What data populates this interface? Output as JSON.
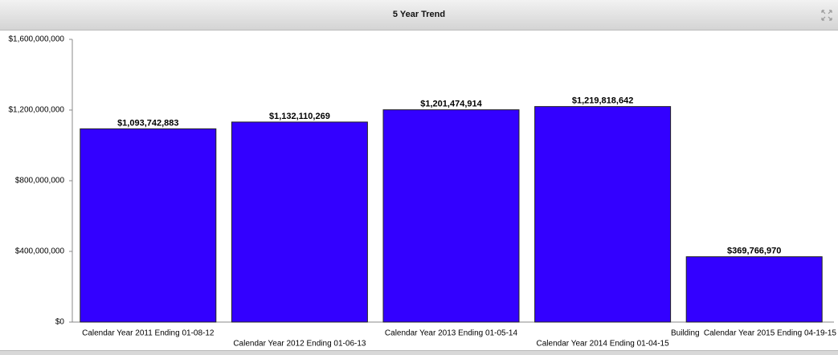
{
  "chart_data": {
    "type": "bar",
    "title": "5 Year Trend",
    "x_label": "Building",
    "categories": [
      "Calendar Year 2011 Ending 01-08-12",
      "Calendar Year 2012 Ending 01-06-13",
      "Calendar Year 2013 Ending 01-05-14",
      "Calendar Year 2014 Ending 01-04-15",
      "Calendar Year 2015 Ending 04-19-15"
    ],
    "values": [
      1093742883,
      1132110269,
      1201474914,
      1219818642,
      369766970
    ],
    "value_labels": [
      "$1,093,742,883",
      "$1,132,110,269",
      "$1,201,474,914",
      "$1,219,818,642",
      "$369,766,970"
    ],
    "color": "#3300ff",
    "ylim": [
      0,
      1600000000
    ],
    "yticks": [
      {
        "value": 0,
        "label": "$0"
      },
      {
        "value": 400000000,
        "label": "$400,000,000"
      },
      {
        "value": 800000000,
        "label": "$800,000,000"
      },
      {
        "value": 1200000000,
        "label": "$1,200,000,000"
      },
      {
        "value": 1600000000,
        "label": "$1,600,000,000"
      }
    ]
  }
}
